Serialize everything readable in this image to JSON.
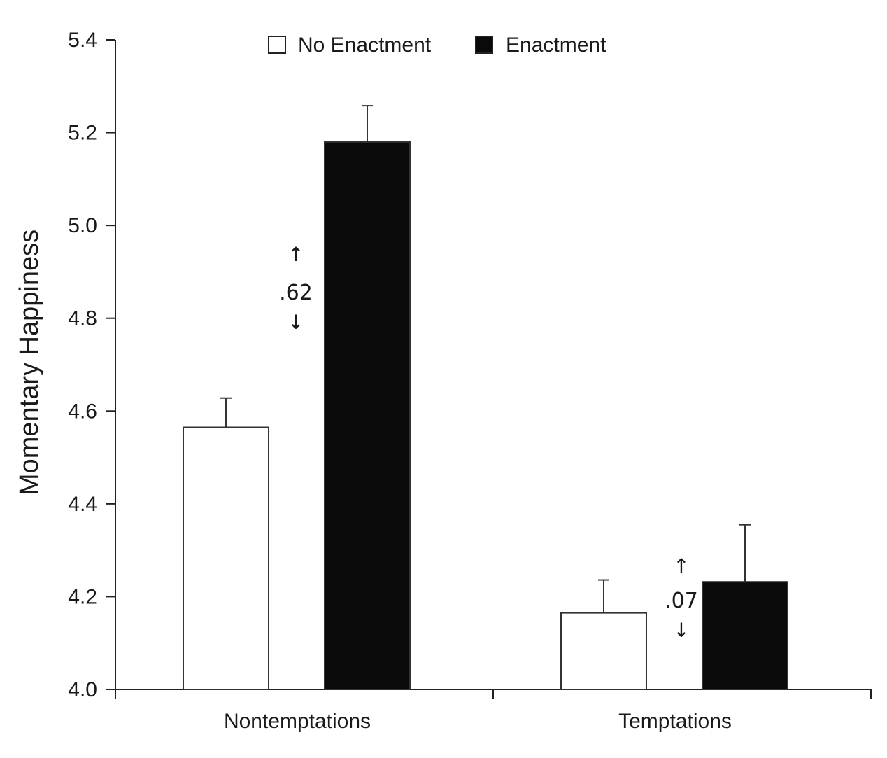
{
  "chart_data": {
    "type": "bar",
    "title": "",
    "xlabel": "",
    "ylabel": "Momentary Happiness",
    "ylim": [
      4.0,
      5.4
    ],
    "yticks": [
      "4.0",
      "4.2",
      "4.4",
      "4.6",
      "4.8",
      "5.0",
      "5.2",
      "5.4"
    ],
    "ytick_values": [
      4.0,
      4.2,
      4.4,
      4.6,
      4.8,
      5.0,
      5.2,
      5.4
    ],
    "categories": [
      "Nontemptations",
      "Temptations"
    ],
    "legend_position": "top",
    "grid": false,
    "series": [
      {
        "name": "No Enactment",
        "color": "#ffffff",
        "values": [
          4.565,
          4.165
        ],
        "error_upper": [
          4.628,
          4.236
        ]
      },
      {
        "name": "Enactment",
        "color": "#0a0a0a",
        "values": [
          5.18,
          4.232
        ],
        "error_upper": [
          5.258,
          4.355
        ]
      }
    ],
    "annotations": [
      {
        "category": "Nontemptations",
        "text": ".62",
        "arrow_up": "↑",
        "arrow_down": "↓"
      },
      {
        "category": "Temptations",
        "text": ".07",
        "arrow_up": "↑",
        "arrow_down": "↓"
      }
    ]
  }
}
